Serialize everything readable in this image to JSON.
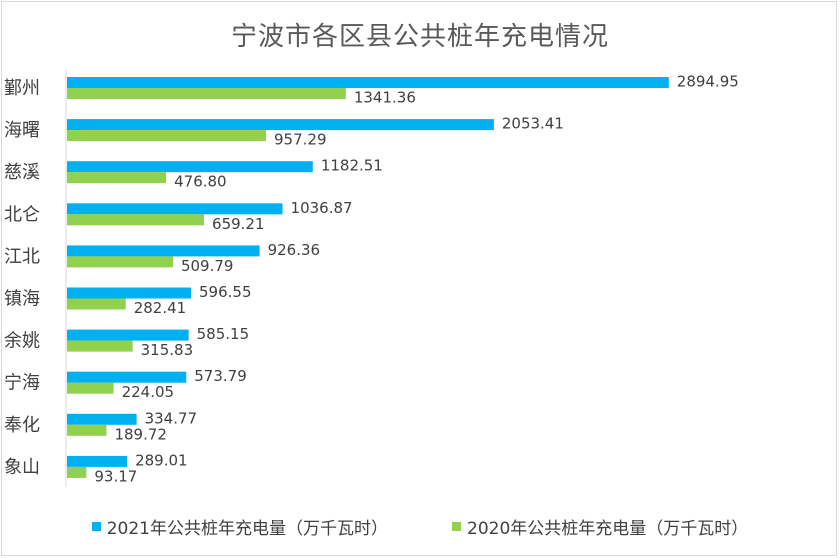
{
  "chart_data": {
    "type": "bar",
    "orientation": "horizontal",
    "title": "宁波市各区县公共桩年充电情况",
    "categories": [
      "鄞州",
      "海曙",
      "慈溪",
      "北仑",
      "江北",
      "镇海",
      "余姚",
      "宁海",
      "奉化",
      "象山"
    ],
    "series": [
      {
        "name": "2021年公共桩年充电量（万千瓦时）",
        "color": "#00B0F0",
        "values": [
          2894.95,
          2053.41,
          1182.51,
          1036.87,
          926.36,
          596.55,
          585.15,
          573.79,
          334.77,
          289.01
        ],
        "labels": [
          "2894.95",
          "2053.41",
          "1182.51",
          "1036.87",
          "926.36",
          "596.55",
          "585.15",
          "573.79",
          "334.77",
          "289.01"
        ]
      },
      {
        "name": "2020年公共桩年充电量（万千瓦时）",
        "color": "#92D050",
        "values": [
          1341.36,
          957.29,
          476.8,
          659.21,
          509.79,
          282.41,
          315.83,
          224.05,
          189.72,
          93.17
        ],
        "labels": [
          "1341.36",
          "957.29",
          "476.80",
          "659.21",
          "509.79",
          "282.41",
          "315.83",
          "224.05",
          "189.72",
          "93.17"
        ]
      }
    ],
    "xlim": [
      0,
      3300
    ],
    "grid": false,
    "legend_position": "bottom"
  }
}
